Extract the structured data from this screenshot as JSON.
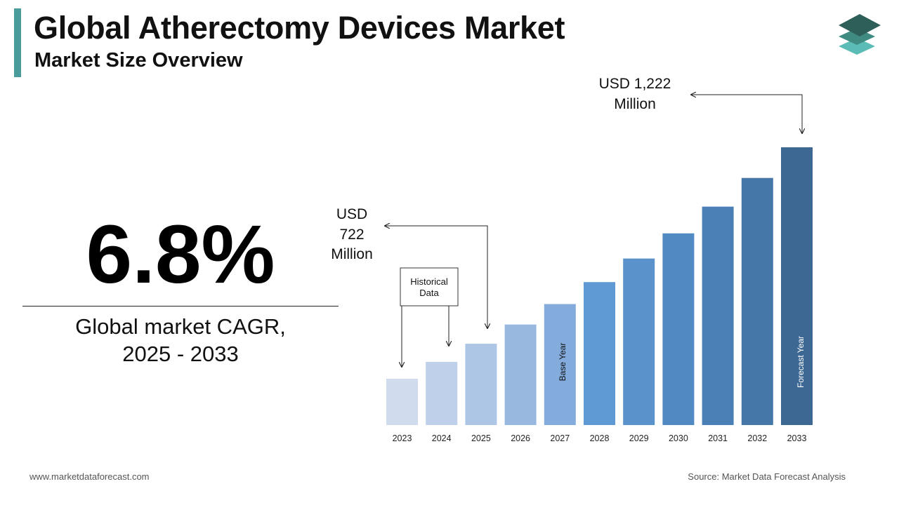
{
  "header": {
    "title": "Global Atherectomy Devices Market",
    "subtitle": "Market Size Overview"
  },
  "kpi": {
    "cagr": "6.8%",
    "label_line1": "Global market CAGR,",
    "label_line2": "2025 - 2033"
  },
  "callouts": {
    "start": [
      "USD",
      "722",
      "Million"
    ],
    "end": [
      "USD 1,222",
      "Million"
    ],
    "historical": [
      "Historical",
      "Data"
    ],
    "base_year": "Base Year",
    "forecast_year": "Forecast Year"
  },
  "footer": {
    "website": "www.marketdataforecast.com",
    "source": "Source: Market Data Forecast Analysis"
  },
  "colors": {
    "accent": "#4a9c9a",
    "bars": [
      "#d0dcee",
      "#bfd1ea",
      "#adc6e6",
      "#98b8e0",
      "#83abdc",
      "#5f9ad4",
      "#5a93cc",
      "#5189c2",
      "#4b80b7",
      "#4577a9",
      "#3d6894"
    ]
  },
  "chart_data": {
    "type": "bar",
    "title": "",
    "xlabel": "",
    "ylabel": "",
    "categories": [
      "2023",
      "2024",
      "2025",
      "2026",
      "2027",
      "2028",
      "2029",
      "2030",
      "2031",
      "2032",
      "2033"
    ],
    "values": [
      633,
      676,
      722,
      771,
      823,
      879,
      939,
      1003,
      1071,
      1144,
      1222
    ],
    "ylim": [
      0,
      1222
    ],
    "grid": false,
    "legend": "none"
  }
}
